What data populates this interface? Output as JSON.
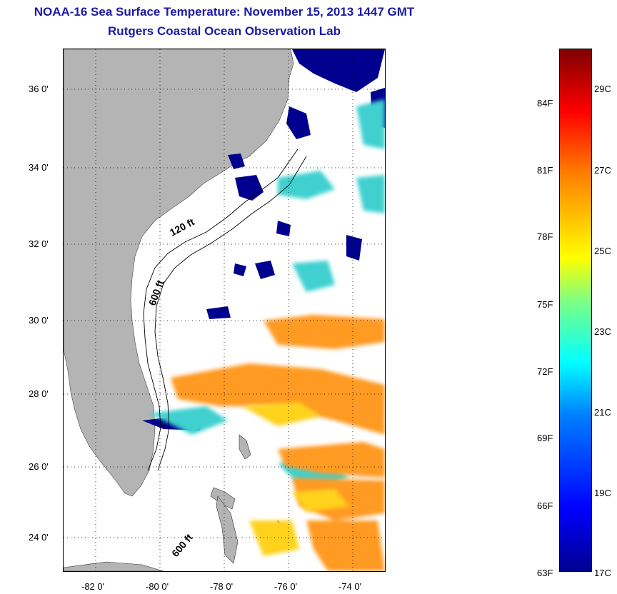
{
  "header": {
    "title": "NOAA-16 Sea Surface Temperature:  November 15, 2013 1447 GMT",
    "subtitle": "Rutgers Coastal Ocean Observation Lab"
  },
  "map": {
    "lat_ticks": [
      "36 0'",
      "34 0'",
      "32 0'",
      "30 0'",
      "28 0'",
      "26 0'",
      "24 0'"
    ],
    "lon_ticks": [
      "-82 0'",
      "-80 0'",
      "-78 0'",
      "-76 0'",
      "-74 0'"
    ],
    "contour_labels": [
      "120 ft",
      "600 ft",
      "600 ft"
    ],
    "land_color": "#b4b4b4"
  },
  "colorbar": {
    "fahrenheit_labels": [
      "84F",
      "81F",
      "78F",
      "75F",
      "72F",
      "69F",
      "66F",
      "63F"
    ],
    "celsius_labels": [
      "29C",
      "27C",
      "25C",
      "23C",
      "21C",
      "19C",
      "17C"
    ]
  }
}
